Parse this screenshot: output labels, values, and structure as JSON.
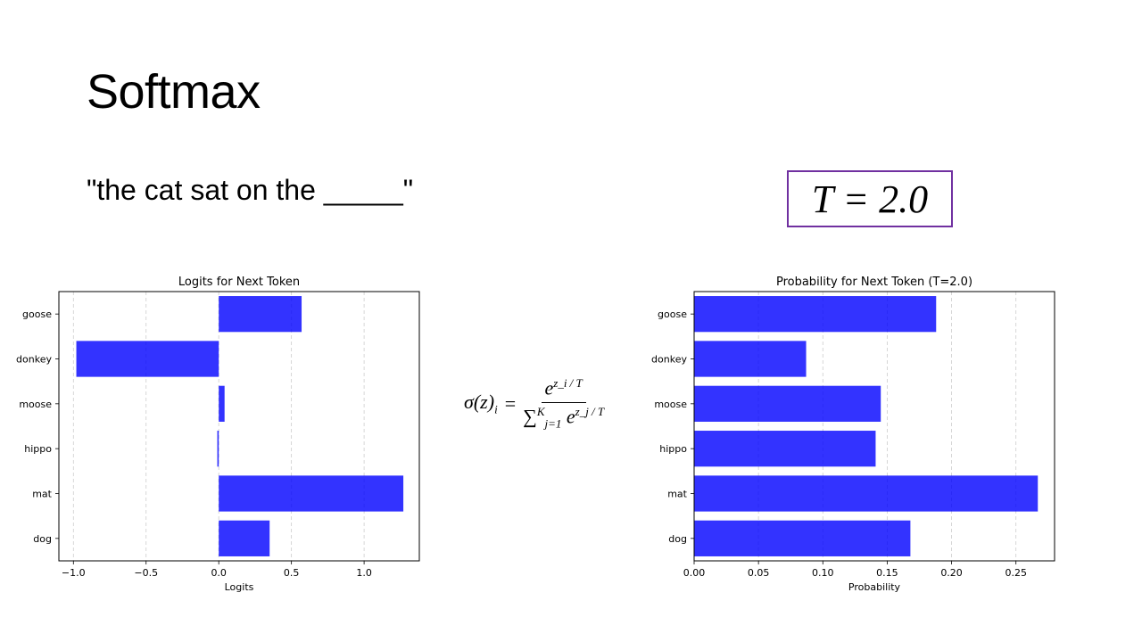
{
  "slide": {
    "title": "Softmax",
    "prompt": "\"the cat sat on the _____\"",
    "temperature_label": "T = 2.0"
  },
  "formula": {
    "lhs": "σ(z)",
    "lhs_sub": "i",
    "equals": "=",
    "numerator_base": "e",
    "numerator_exp": "z_i / T",
    "denominator_sum": "∑",
    "denominator_sum_sup": "K",
    "denominator_sum_sub": "j=1",
    "denominator_base": "e",
    "denominator_exp": "z_j / T"
  },
  "chart_data": [
    {
      "type": "bar",
      "orientation": "horizontal",
      "title": "Logits for Next Token",
      "xlabel": "Logits",
      "ylabel": "",
      "categories": [
        "goose",
        "donkey",
        "moose",
        "hippo",
        "mat",
        "dog"
      ],
      "values": [
        0.57,
        -0.98,
        0.04,
        -0.01,
        1.27,
        0.35
      ],
      "xlim": [
        -1.1,
        1.38
      ],
      "xticks": [
        -1.0,
        -0.5,
        0.0,
        0.5,
        1.0
      ],
      "xtick_labels": [
        "−1.0",
        "−0.5",
        "0.0",
        "0.5",
        "1.0"
      ],
      "grid": "x-dashed",
      "bar_color": "#0000ff",
      "legend": "none"
    },
    {
      "type": "bar",
      "orientation": "horizontal",
      "title": "Probability for Next Token (T=2.0)",
      "xlabel": "Probability",
      "ylabel": "",
      "categories": [
        "goose",
        "donkey",
        "moose",
        "hippo",
        "mat",
        "dog"
      ],
      "values": [
        0.188,
        0.087,
        0.145,
        0.141,
        0.267,
        0.168
      ],
      "xlim": [
        0,
        0.28
      ],
      "xticks": [
        0.0,
        0.05,
        0.1,
        0.15,
        0.2,
        0.25
      ],
      "xtick_labels": [
        "0.00",
        "0.05",
        "0.10",
        "0.15",
        "0.20",
        "0.25"
      ],
      "grid": "x-dashed",
      "bar_color": "#0000ff",
      "legend": "none"
    }
  ]
}
